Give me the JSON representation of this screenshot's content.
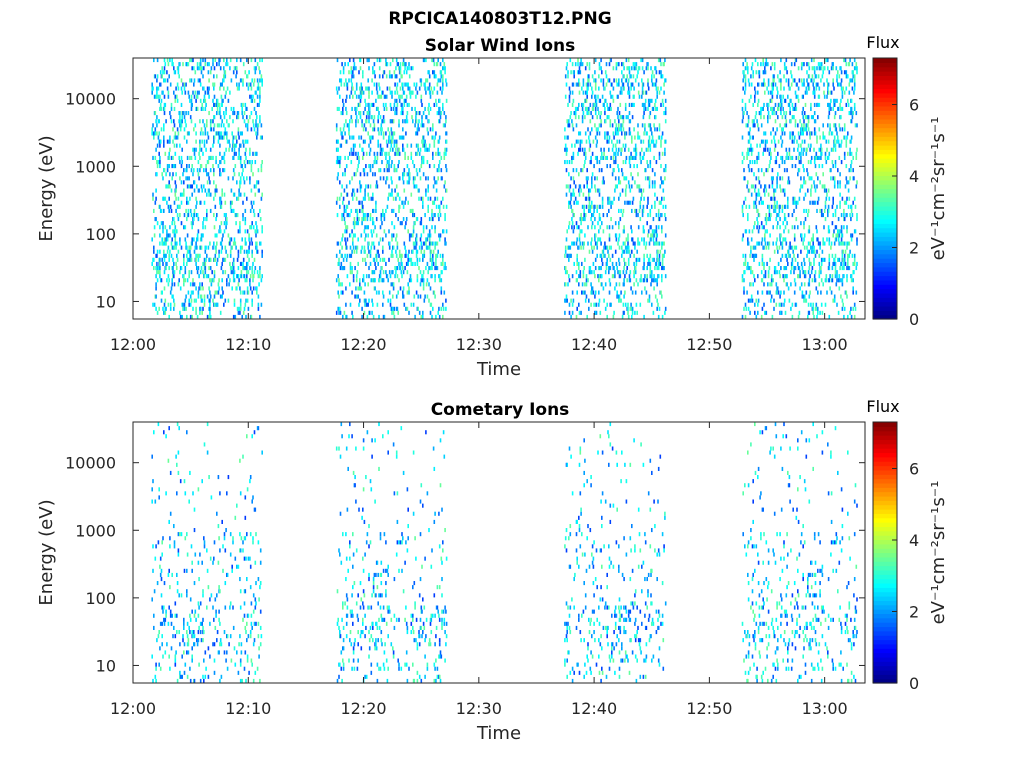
{
  "figure": {
    "filename": "RPCICA140803T12.PNG"
  },
  "chart_data": [
    {
      "type": "heatmap",
      "title": "Solar Wind Ions",
      "xlabel": "Time",
      "ylabel": "Energy (eV)",
      "x_range_minutes": [
        0,
        63.5
      ],
      "x_ticks": [
        {
          "minute": 0,
          "label": "12:00"
        },
        {
          "minute": 10,
          "label": "12:10"
        },
        {
          "minute": 20,
          "label": "12:20"
        },
        {
          "minute": 30,
          "label": "12:30"
        },
        {
          "minute": 40,
          "label": "12:40"
        },
        {
          "minute": 50,
          "label": "12:50"
        },
        {
          "minute": 60,
          "label": "13:00"
        }
      ],
      "y_scale": "log",
      "y_range": [
        5.5,
        40000
      ],
      "y_ticks": [
        {
          "value": 10,
          "label": "10"
        },
        {
          "value": 100,
          "label": "100"
        },
        {
          "value": 1000,
          "label": "1000"
        },
        {
          "value": 10000,
          "label": "10000"
        }
      ],
      "colorbar": {
        "title": "Flux",
        "label": "eV⁻¹cm⁻²sr⁻¹s⁻¹",
        "range": [
          0,
          7.3
        ],
        "ticks": [
          {
            "value": 0,
            "label": "0"
          },
          {
            "value": 2,
            "label": "2"
          },
          {
            "value": 4,
            "label": "4"
          },
          {
            "value": 6,
            "label": "6"
          }
        ],
        "colormap": "jet"
      },
      "data_blocks": [
        {
          "start_min": 1.6,
          "end_min": 11.2
        },
        {
          "start_min": 17.6,
          "end_min": 27.2
        },
        {
          "start_min": 37.4,
          "end_min": 46.2
        },
        {
          "start_min": 52.8,
          "end_min": 62.8
        }
      ],
      "density": {
        "high_energy": 0.45,
        "mid_energy": 0.35,
        "low_energy": 0.55,
        "typical_value": 2.5
      }
    },
    {
      "type": "heatmap",
      "title": "Cometary Ions",
      "xlabel": "Time",
      "ylabel": "Energy (eV)",
      "x_range_minutes": [
        0,
        63.5
      ],
      "x_ticks": [
        {
          "minute": 0,
          "label": "12:00"
        },
        {
          "minute": 10,
          "label": "12:10"
        },
        {
          "minute": 20,
          "label": "12:20"
        },
        {
          "minute": 30,
          "label": "12:30"
        },
        {
          "minute": 40,
          "label": "12:40"
        },
        {
          "minute": 50,
          "label": "12:50"
        },
        {
          "minute": 60,
          "label": "13:00"
        }
      ],
      "y_scale": "log",
      "y_range": [
        5.5,
        40000
      ],
      "y_ticks": [
        {
          "value": 10,
          "label": "10"
        },
        {
          "value": 100,
          "label": "100"
        },
        {
          "value": 1000,
          "label": "1000"
        },
        {
          "value": 10000,
          "label": "10000"
        }
      ],
      "colorbar": {
        "title": "Flux",
        "label": "eV⁻¹cm⁻²sr⁻¹s⁻¹",
        "range": [
          0,
          7.3
        ],
        "ticks": [
          {
            "value": 0,
            "label": "0"
          },
          {
            "value": 2,
            "label": "2"
          },
          {
            "value": 4,
            "label": "4"
          },
          {
            "value": 6,
            "label": "6"
          }
        ],
        "colormap": "jet"
      },
      "data_blocks": [
        {
          "start_min": 1.6,
          "end_min": 11.2
        },
        {
          "start_min": 17.6,
          "end_min": 27.2
        },
        {
          "start_min": 37.4,
          "end_min": 46.2
        },
        {
          "start_min": 52.8,
          "end_min": 62.8
        }
      ],
      "density": {
        "high_energy": 0.05,
        "mid_energy": 0.12,
        "low_energy": 0.25,
        "typical_value": 2.4
      }
    }
  ]
}
